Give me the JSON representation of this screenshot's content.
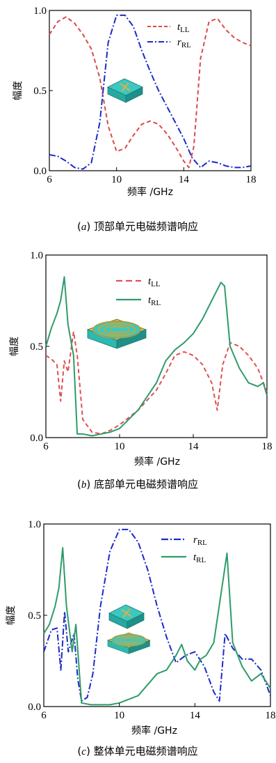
{
  "chart_data": [
    {
      "type": "line",
      "panel": "a",
      "caption_letter": "a",
      "caption_text": "顶部单元电磁频谱响应",
      "xlabel": "频率 /GHz",
      "ylabel": "幅度",
      "xlim": [
        6,
        18
      ],
      "ylim": [
        0,
        1.0
      ],
      "xticks": [
        "6",
        "10",
        "14",
        "18"
      ],
      "yticks": [
        "0.0",
        "0.5",
        "1.0"
      ],
      "legend_position": "top-right",
      "grid": false,
      "series": [
        {
          "name_main": "t",
          "name_sub": "LL",
          "color": "#d94a4a",
          "style": "dashed",
          "x": [
            6,
            6.5,
            7,
            7.5,
            8,
            8.5,
            9,
            9.5,
            10,
            10.5,
            11,
            11.5,
            12,
            12.5,
            13,
            13.5,
            14,
            14.3,
            14.6,
            15,
            15.5,
            16,
            16.5,
            17,
            17.5,
            18
          ],
          "y": [
            0.85,
            0.93,
            0.96,
            0.92,
            0.85,
            0.76,
            0.58,
            0.28,
            0.12,
            0.14,
            0.22,
            0.29,
            0.31,
            0.29,
            0.23,
            0.15,
            0.06,
            0.02,
            0.15,
            0.7,
            0.93,
            0.95,
            0.88,
            0.83,
            0.8,
            0.78
          ]
        },
        {
          "name_main": "r",
          "name_sub": "RL",
          "color": "#1a2bc7",
          "style": "dashdot",
          "x": [
            6,
            6.5,
            7,
            7.5,
            8,
            8.5,
            9,
            9.5,
            10,
            10.5,
            11,
            11.5,
            12,
            12.5,
            13,
            13.5,
            14,
            14.5,
            15,
            15.5,
            16,
            16.5,
            17,
            17.5,
            18
          ],
          "y": [
            0.1,
            0.09,
            0.06,
            0.02,
            0.01,
            0.05,
            0.3,
            0.8,
            0.97,
            0.97,
            0.9,
            0.75,
            0.62,
            0.5,
            0.4,
            0.3,
            0.2,
            0.08,
            0.02,
            0.06,
            0.05,
            0.03,
            0.02,
            0.02,
            0.03
          ]
        }
      ]
    },
    {
      "type": "line",
      "panel": "b",
      "caption_letter": "b",
      "caption_text": "底部单元电磁频谱响应",
      "xlabel": "频率 /GHz",
      "ylabel": "幅度",
      "xlim": [
        6,
        18
      ],
      "ylim": [
        0,
        1.0
      ],
      "xticks": [
        "6",
        "10",
        "14",
        "18"
      ],
      "yticks": [
        "0.0",
        "0.5",
        "1.0"
      ],
      "legend_position": "top-center",
      "grid": false,
      "series": [
        {
          "name_main": "t",
          "name_sub": "LL",
          "color": "#e05050",
          "style": "dashed",
          "x": [
            6,
            6.3,
            6.6,
            6.8,
            7,
            7.2,
            7.5,
            7.7,
            8,
            8.5,
            9,
            9.5,
            10,
            11,
            12,
            12.5,
            13,
            13.5,
            14,
            14.5,
            15,
            15.3,
            15.6,
            16,
            16.5,
            17,
            17.5,
            18
          ],
          "y": [
            0.45,
            0.43,
            0.4,
            0.2,
            0.42,
            0.36,
            0.58,
            0.45,
            0.1,
            0.03,
            0.02,
            0.04,
            0.07,
            0.15,
            0.26,
            0.35,
            0.45,
            0.47,
            0.45,
            0.4,
            0.3,
            0.15,
            0.4,
            0.52,
            0.5,
            0.45,
            0.38,
            0.25
          ]
        },
        {
          "name_main": "t",
          "name_sub": "RL",
          "color": "#2e9b6a",
          "style": "solid",
          "x": [
            6,
            6.3,
            6.6,
            6.8,
            7,
            7.2,
            7.5,
            7.7,
            8,
            8.5,
            9,
            9.5,
            10,
            11,
            12,
            12.5,
            13,
            13.5,
            14,
            14.5,
            15,
            15.5,
            15.7,
            16,
            16.5,
            17,
            17.5,
            17.8,
            18
          ],
          "y": [
            0.5,
            0.6,
            0.68,
            0.75,
            0.88,
            0.62,
            0.45,
            0.02,
            0.02,
            0.01,
            0.02,
            0.03,
            0.05,
            0.15,
            0.3,
            0.42,
            0.48,
            0.52,
            0.57,
            0.65,
            0.75,
            0.85,
            0.83,
            0.5,
            0.38,
            0.3,
            0.28,
            0.3,
            0.23
          ]
        }
      ]
    },
    {
      "type": "line",
      "panel": "c",
      "caption_letter": "c",
      "caption_text": "整体单元电磁频谱响应",
      "xlabel": "频率 /GHz",
      "ylabel": "幅度",
      "xlim": [
        6,
        18
      ],
      "ylim": [
        0,
        1.0
      ],
      "xticks": [
        "6",
        "10",
        "14",
        "18"
      ],
      "yticks": [
        "0.0",
        "0.5",
        "1.0"
      ],
      "legend_position": "top-right",
      "grid": false,
      "series": [
        {
          "name_main": "r",
          "name_sub": "RL",
          "color": "#1a2bc7",
          "style": "dashdot",
          "x": [
            6,
            6.4,
            6.7,
            6.9,
            7.1,
            7.3,
            7.6,
            7.8,
            8,
            8.3,
            8.6,
            9,
            9.5,
            10,
            10.5,
            11,
            11.5,
            12,
            12.5,
            13,
            13.5,
            14,
            14.5,
            15,
            15.3,
            15.6,
            16,
            16.5,
            17,
            17.5,
            18
          ],
          "y": [
            0.3,
            0.42,
            0.43,
            0.2,
            0.52,
            0.3,
            0.4,
            0.15,
            0.03,
            0.05,
            0.18,
            0.55,
            0.85,
            0.97,
            0.97,
            0.9,
            0.75,
            0.55,
            0.38,
            0.24,
            0.28,
            0.3,
            0.22,
            0.08,
            0.03,
            0.4,
            0.32,
            0.26,
            0.26,
            0.2,
            0.06
          ]
        },
        {
          "name_main": "t",
          "name_sub": "RL",
          "color": "#2e9b6a",
          "style": "solid",
          "x": [
            6,
            6.3,
            6.6,
            6.8,
            7,
            7.2,
            7.5,
            7.7,
            8,
            8.5,
            9,
            9.5,
            10,
            11,
            12,
            12.5,
            13,
            13.3,
            13.6,
            14,
            14.3,
            14.6,
            15,
            15.5,
            15.7,
            16,
            16.5,
            17,
            17.5,
            18
          ],
          "y": [
            0.4,
            0.45,
            0.55,
            0.65,
            0.87,
            0.55,
            0.3,
            0.45,
            0.02,
            0.01,
            0.01,
            0.01,
            0.02,
            0.06,
            0.18,
            0.2,
            0.28,
            0.34,
            0.25,
            0.2,
            0.26,
            0.28,
            0.35,
            0.7,
            0.84,
            0.35,
            0.22,
            0.14,
            0.18,
            0.1
          ]
        }
      ]
    }
  ]
}
